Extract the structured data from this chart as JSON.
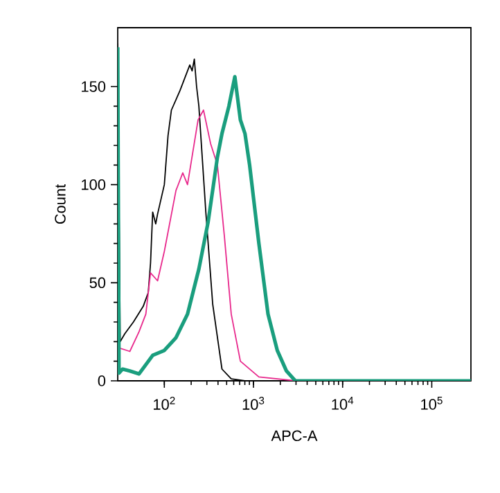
{
  "chart_data": {
    "type": "line",
    "xlabel": "APC-A",
    "ylabel": "Count",
    "log": "x",
    "xlim": [
      30,
      275000
    ],
    "ylim": [
      0,
      180
    ],
    "xticks": [
      {
        "value": 100,
        "label": "10$^{2}$"
      },
      {
        "value": 1000,
        "label": "10$^{3}$"
      },
      {
        "value": 10000,
        "label": "10$^{4}$"
      },
      {
        "value": 100000,
        "label": "10$^{5}$"
      }
    ],
    "yticks": [
      0,
      50,
      100,
      150
    ],
    "grid": false,
    "marker": "none",
    "line_style": "solid",
    "series": [
      {
        "color": "#000000",
        "x": [
          30,
          32,
          36,
          45,
          58,
          66,
          70,
          74,
          80,
          84,
          100,
          110,
          120,
          150,
          193,
          205,
          217,
          230,
          244,
          292,
          349,
          443,
          563,
          800,
          2000,
          4000
        ],
        "values": [
          172,
          20,
          24,
          30,
          38,
          45,
          60,
          86,
          80,
          85,
          100,
          125,
          138,
          148,
          161,
          158,
          164,
          150,
          140,
          86,
          39,
          6,
          1,
          0,
          0,
          0
        ]
      },
      {
        "color": "#e8288c",
        "x": [
          30,
          41,
          52,
          62,
          70,
          84,
          100,
          135,
          161,
          182,
          239,
          275,
          330,
          394,
          471,
          563,
          713,
          1150,
          3000,
          5000
        ],
        "values": [
          17,
          15,
          25,
          34,
          55,
          51,
          66,
          97,
          106,
          100,
          133,
          138,
          121,
          110,
          74,
          34,
          10,
          2,
          0,
          0
        ]
      },
      {
        "color": "#1a9e7e",
        "x": [
          30,
          31,
          34,
          41,
          52,
          74,
          100,
          135,
          182,
          244,
          310,
          394,
          443,
          530,
          618,
          713,
          803,
          905,
          1150,
          1456,
          1850,
          2345,
          2950,
          275000
        ],
        "values": [
          170,
          4,
          6,
          5,
          3.5,
          13,
          15.5,
          22,
          34,
          57,
          81,
          114,
          126,
          140,
          155,
          133,
          126,
          110,
          70,
          34,
          15.5,
          5,
          0,
          0
        ]
      }
    ]
  }
}
